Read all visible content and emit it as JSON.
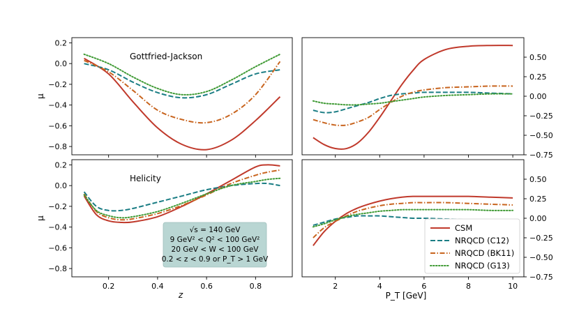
{
  "chart_data": [
    {
      "id": "tl",
      "type": "line",
      "annotation": "Gottfried-Jackson",
      "xlabel": "",
      "ylabel": "μ",
      "xlim": [
        0.05,
        0.95
      ],
      "ylim": [
        -0.88,
        0.25
      ],
      "xticks": [
        0.2,
        0.4,
        0.6,
        0.8
      ],
      "xtick_labels": [
        "",
        "",
        "",
        ""
      ],
      "yticks": [
        0.2,
        0.0,
        -0.2,
        -0.4,
        -0.6,
        -0.8
      ],
      "ytick_labels": [
        "0.2",
        "0.0",
        "−0.2",
        "−0.4",
        "−0.6",
        "−0.8"
      ],
      "yaxis_side": "left",
      "x": [
        0.1,
        0.2,
        0.3,
        0.4,
        0.5,
        0.6,
        0.7,
        0.8,
        0.9
      ],
      "series": [
        {
          "name": "CSM",
          "values": [
            0.05,
            -0.1,
            -0.37,
            -0.62,
            -0.78,
            -0.83,
            -0.74,
            -0.55,
            -0.32
          ]
        },
        {
          "name": "NRQCD (C12)",
          "values": [
            0.0,
            -0.06,
            -0.18,
            -0.28,
            -0.33,
            -0.3,
            -0.2,
            -0.1,
            -0.06
          ]
        },
        {
          "name": "NRQCD (BK11)",
          "values": [
            0.03,
            -0.08,
            -0.26,
            -0.45,
            -0.54,
            -0.57,
            -0.49,
            -0.3,
            0.02
          ]
        },
        {
          "name": "NRQCD (G13)",
          "values": [
            0.09,
            0.0,
            -0.13,
            -0.24,
            -0.3,
            -0.27,
            -0.16,
            -0.03,
            0.09
          ]
        }
      ]
    },
    {
      "id": "tr",
      "type": "line",
      "xlabel": "",
      "ylabel": "",
      "xlim": [
        0.5,
        10.5
      ],
      "ylim": [
        -0.75,
        0.75
      ],
      "xticks": [
        2,
        4,
        6,
        8,
        10
      ],
      "xtick_labels": [
        "",
        "",
        "",
        "",
        ""
      ],
      "yticks": [
        0.5,
        0.25,
        0.0,
        -0.25,
        -0.5,
        -0.75
      ],
      "ytick_labels": [
        "0.50",
        "0.25",
        "0.00",
        "−0.25",
        "−0.50",
        "−0.75"
      ],
      "yaxis_side": "right",
      "x": [
        1,
        1.5,
        2,
        2.5,
        3,
        3.5,
        4,
        4.5,
        5,
        5.5,
        6,
        7,
        8,
        9,
        10
      ],
      "series": [
        {
          "name": "CSM",
          "values": [
            -0.53,
            -0.62,
            -0.67,
            -0.67,
            -0.6,
            -0.46,
            -0.27,
            -0.06,
            0.15,
            0.33,
            0.47,
            0.6,
            0.64,
            0.65,
            0.65
          ]
        },
        {
          "name": "NRQCD (C12)",
          "values": [
            -0.18,
            -0.21,
            -0.2,
            -0.16,
            -0.12,
            -0.08,
            -0.03,
            0.01,
            0.03,
            0.04,
            0.05,
            0.05,
            0.05,
            0.04,
            0.03
          ]
        },
        {
          "name": "NRQCD (BK11)",
          "values": [
            -0.3,
            -0.34,
            -0.37,
            -0.37,
            -0.33,
            -0.27,
            -0.17,
            -0.08,
            0.0,
            0.05,
            0.08,
            0.11,
            0.12,
            0.13,
            0.13
          ]
        },
        {
          "name": "NRQCD (G13)",
          "values": [
            -0.06,
            -0.09,
            -0.1,
            -0.11,
            -0.11,
            -0.1,
            -0.09,
            -0.07,
            -0.05,
            -0.03,
            -0.01,
            0.01,
            0.02,
            0.03,
            0.03
          ]
        }
      ]
    },
    {
      "id": "bl",
      "type": "line",
      "annotation": "Helicity",
      "xlabel": "z",
      "ylabel": "μ",
      "xlim": [
        0.05,
        0.95
      ],
      "ylim": [
        -0.88,
        0.25
      ],
      "xticks": [
        0.2,
        0.4,
        0.6,
        0.8
      ],
      "xtick_labels": [
        "0.2",
        "0.4",
        "0.6",
        "0.8"
      ],
      "yticks": [
        0.2,
        0.0,
        -0.2,
        -0.4,
        -0.6,
        -0.8
      ],
      "ytick_labels": [
        "0.2",
        "0.0",
        "−0.2",
        "−0.4",
        "−0.6",
        "−0.8"
      ],
      "yaxis_side": "left",
      "x": [
        0.1,
        0.15,
        0.2,
        0.25,
        0.3,
        0.4,
        0.5,
        0.6,
        0.7,
        0.8,
        0.85,
        0.9
      ],
      "series": [
        {
          "name": "CSM",
          "values": [
            -0.1,
            -0.28,
            -0.34,
            -0.355,
            -0.35,
            -0.3,
            -0.2,
            -0.08,
            0.05,
            0.18,
            0.2,
            0.19
          ]
        },
        {
          "name": "NRQCD (C12)",
          "values": [
            -0.06,
            -0.2,
            -0.24,
            -0.24,
            -0.22,
            -0.16,
            -0.1,
            -0.04,
            0.0,
            0.02,
            0.02,
            0.0
          ]
        },
        {
          "name": "NRQCD (BK11)",
          "values": [
            -0.08,
            -0.25,
            -0.31,
            -0.33,
            -0.32,
            -0.27,
            -0.19,
            -0.09,
            0.02,
            0.1,
            0.13,
            0.15
          ]
        },
        {
          "name": "NRQCD (G13)",
          "values": [
            -0.09,
            -0.24,
            -0.29,
            -0.31,
            -0.3,
            -0.25,
            -0.17,
            -0.08,
            0.0,
            0.04,
            0.06,
            0.07
          ]
        }
      ],
      "info_box": {
        "lines": [
          "√s = 140 GeV",
          "9 GeV² < Q² < 100 GeV²",
          "20 GeV < W < 100 GeV",
          "0.2 < z < 0.9 or P_T > 1 GeV"
        ],
        "box_color": "#b9d6d3"
      }
    },
    {
      "id": "br",
      "type": "line",
      "xlabel": "P_T [GeV]",
      "ylabel": "",
      "xlim": [
        0.5,
        10.5
      ],
      "ylim": [
        -0.75,
        0.75
      ],
      "xticks": [
        2,
        4,
        6,
        8,
        10
      ],
      "xtick_labels": [
        "2",
        "4",
        "6",
        "8",
        "10"
      ],
      "yticks": [
        0.5,
        0.25,
        0.0,
        -0.25,
        -0.5,
        -0.75
      ],
      "ytick_labels": [
        "0.50",
        "0.25",
        "0.00",
        "−0.25",
        "−0.50",
        "−0.75"
      ],
      "yaxis_side": "right",
      "x": [
        1,
        1.5,
        2,
        2.5,
        3,
        3.5,
        4,
        4.5,
        5,
        5.5,
        6,
        7,
        8,
        9,
        10
      ],
      "series": [
        {
          "name": "CSM",
          "values": [
            -0.35,
            -0.17,
            -0.04,
            0.06,
            0.13,
            0.18,
            0.22,
            0.25,
            0.27,
            0.28,
            0.28,
            0.28,
            0.28,
            0.27,
            0.26
          ]
        },
        {
          "name": "NRQCD (C12)",
          "values": [
            -0.09,
            -0.05,
            -0.01,
            0.01,
            0.03,
            0.03,
            0.03,
            0.02,
            0.01,
            0.0,
            0.0,
            -0.01,
            -0.02,
            -0.02,
            -0.03
          ]
        },
        {
          "name": "NRQCD (BK11)",
          "values": [
            -0.25,
            -0.12,
            -0.04,
            0.03,
            0.09,
            0.13,
            0.16,
            0.18,
            0.19,
            0.2,
            0.2,
            0.2,
            0.19,
            0.18,
            0.17
          ]
        },
        {
          "name": "NRQCD (G13)",
          "values": [
            -0.11,
            -0.07,
            -0.02,
            0.02,
            0.05,
            0.07,
            0.09,
            0.1,
            0.11,
            0.11,
            0.11,
            0.11,
            0.11,
            0.1,
            0.1
          ]
        }
      ],
      "legend": {
        "placement": "lower-right",
        "entries": [
          "CSM",
          "NRQCD (C12)",
          "NRQCD (BK11)",
          "NRQCD (G13)"
        ]
      }
    }
  ],
  "series_styles": {
    "CSM": {
      "color": "#c0392b",
      "dash": "solid"
    },
    "NRQCD (C12)": {
      "color": "#1a7d84",
      "dash": "dashed"
    },
    "NRQCD (BK11)": {
      "color": "#c8641e",
      "dash": "dashdot"
    },
    "NRQCD (G13)": {
      "color": "#3f9a34",
      "dash": "dotted"
    }
  }
}
